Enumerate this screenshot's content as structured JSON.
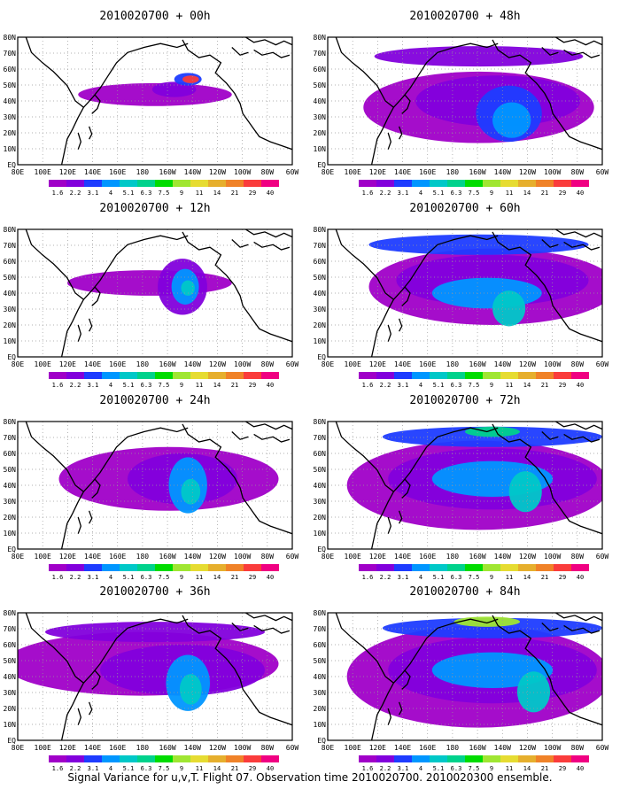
{
  "caption": "Signal Variance for u,v,T. Flight 07. Observation time 2010020700. 2010020300 ensemble.",
  "colorbar": {
    "labels": [
      "1.6",
      "2.2",
      "3.1",
      "4",
      "5.1",
      "6.3",
      "7.5",
      "9",
      "11",
      "14",
      "21",
      "29",
      "40"
    ],
    "colors": [
      "#a000c8",
      "#8200dc",
      "#1e3cff",
      "#0096ff",
      "#00c8c8",
      "#00d28c",
      "#00dc00",
      "#a0e632",
      "#e6dc32",
      "#e6af2d",
      "#f08228",
      "#fa3c3c",
      "#f00082"
    ]
  },
  "map": {
    "lon_labels": [
      "80E",
      "100E",
      "120E",
      "140E",
      "160E",
      "180",
      "160W",
      "140W",
      "120W",
      "100W",
      "80W",
      "60W"
    ],
    "lat_labels": [
      "EQ",
      "10N",
      "20N",
      "30N",
      "40N",
      "50N",
      "60N",
      "70N",
      "80N"
    ]
  },
  "chart_data": [
    {
      "type": "heatmap",
      "title": "2010020700 + 00h",
      "lead_hours": 0
    },
    {
      "type": "heatmap",
      "title": "2010020700 + 48h",
      "lead_hours": 48
    },
    {
      "type": "heatmap",
      "title": "2010020700 + 12h",
      "lead_hours": 12
    },
    {
      "type": "heatmap",
      "title": "2010020700 + 60h",
      "lead_hours": 60
    },
    {
      "type": "heatmap",
      "title": "2010020700 + 24h",
      "lead_hours": 24
    },
    {
      "type": "heatmap",
      "title": "2010020700 + 72h",
      "lead_hours": 72
    },
    {
      "type": "heatmap",
      "title": "2010020700 + 36h",
      "lead_hours": 36
    },
    {
      "type": "heatmap",
      "title": "2010020700 + 84h",
      "lead_hours": 84
    }
  ]
}
